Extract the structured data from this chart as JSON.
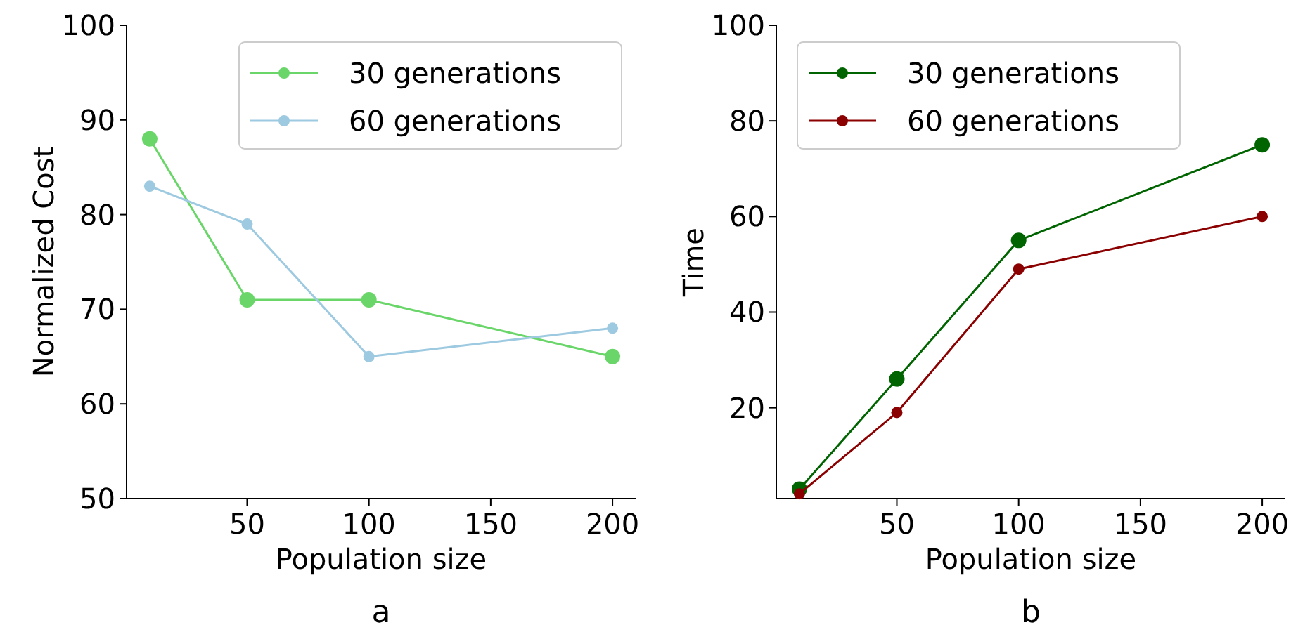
{
  "chart_data": [
    {
      "type": "line",
      "xlabel": "Population size",
      "ylabel": "Normalized Cost",
      "annotations": [
        "a"
      ],
      "xlim": [
        0.5,
        209.5
      ],
      "ylim": [
        50,
        100
      ],
      "xticks": [
        50,
        100,
        150,
        200
      ],
      "yticks": [
        50,
        60,
        70,
        80,
        90,
        100
      ],
      "grid": false,
      "legend": "top right",
      "marker": "circle",
      "line_style": "solid",
      "x": [
        10,
        50,
        100,
        200
      ],
      "series": [
        {
          "name": "30 generations",
          "color": "#6ad66a",
          "values": [
            88,
            71,
            71,
            65
          ]
        },
        {
          "name": "60 generations",
          "color": "#9ecae1",
          "values": [
            83,
            79,
            65,
            68
          ]
        }
      ]
    },
    {
      "type": "line",
      "xlabel": "Population size",
      "ylabel": "Time",
      "annotations": [
        "b"
      ],
      "xlim": [
        0.5,
        209.5
      ],
      "ylim": [
        1,
        100
      ],
      "xticks": [
        50,
        100,
        150,
        200
      ],
      "yticks": [
        20,
        40,
        60,
        80,
        100
      ],
      "grid": false,
      "legend": "top left",
      "marker": "circle",
      "line_style": "solid",
      "x": [
        10,
        50,
        100,
        200
      ],
      "series": [
        {
          "name": "30 generations",
          "color": "#006400",
          "values": [
            3,
            26,
            55,
            75
          ]
        },
        {
          "name": "60 generations",
          "color": "#8b0000",
          "values": [
            2,
            19,
            49,
            60
          ]
        }
      ]
    }
  ]
}
